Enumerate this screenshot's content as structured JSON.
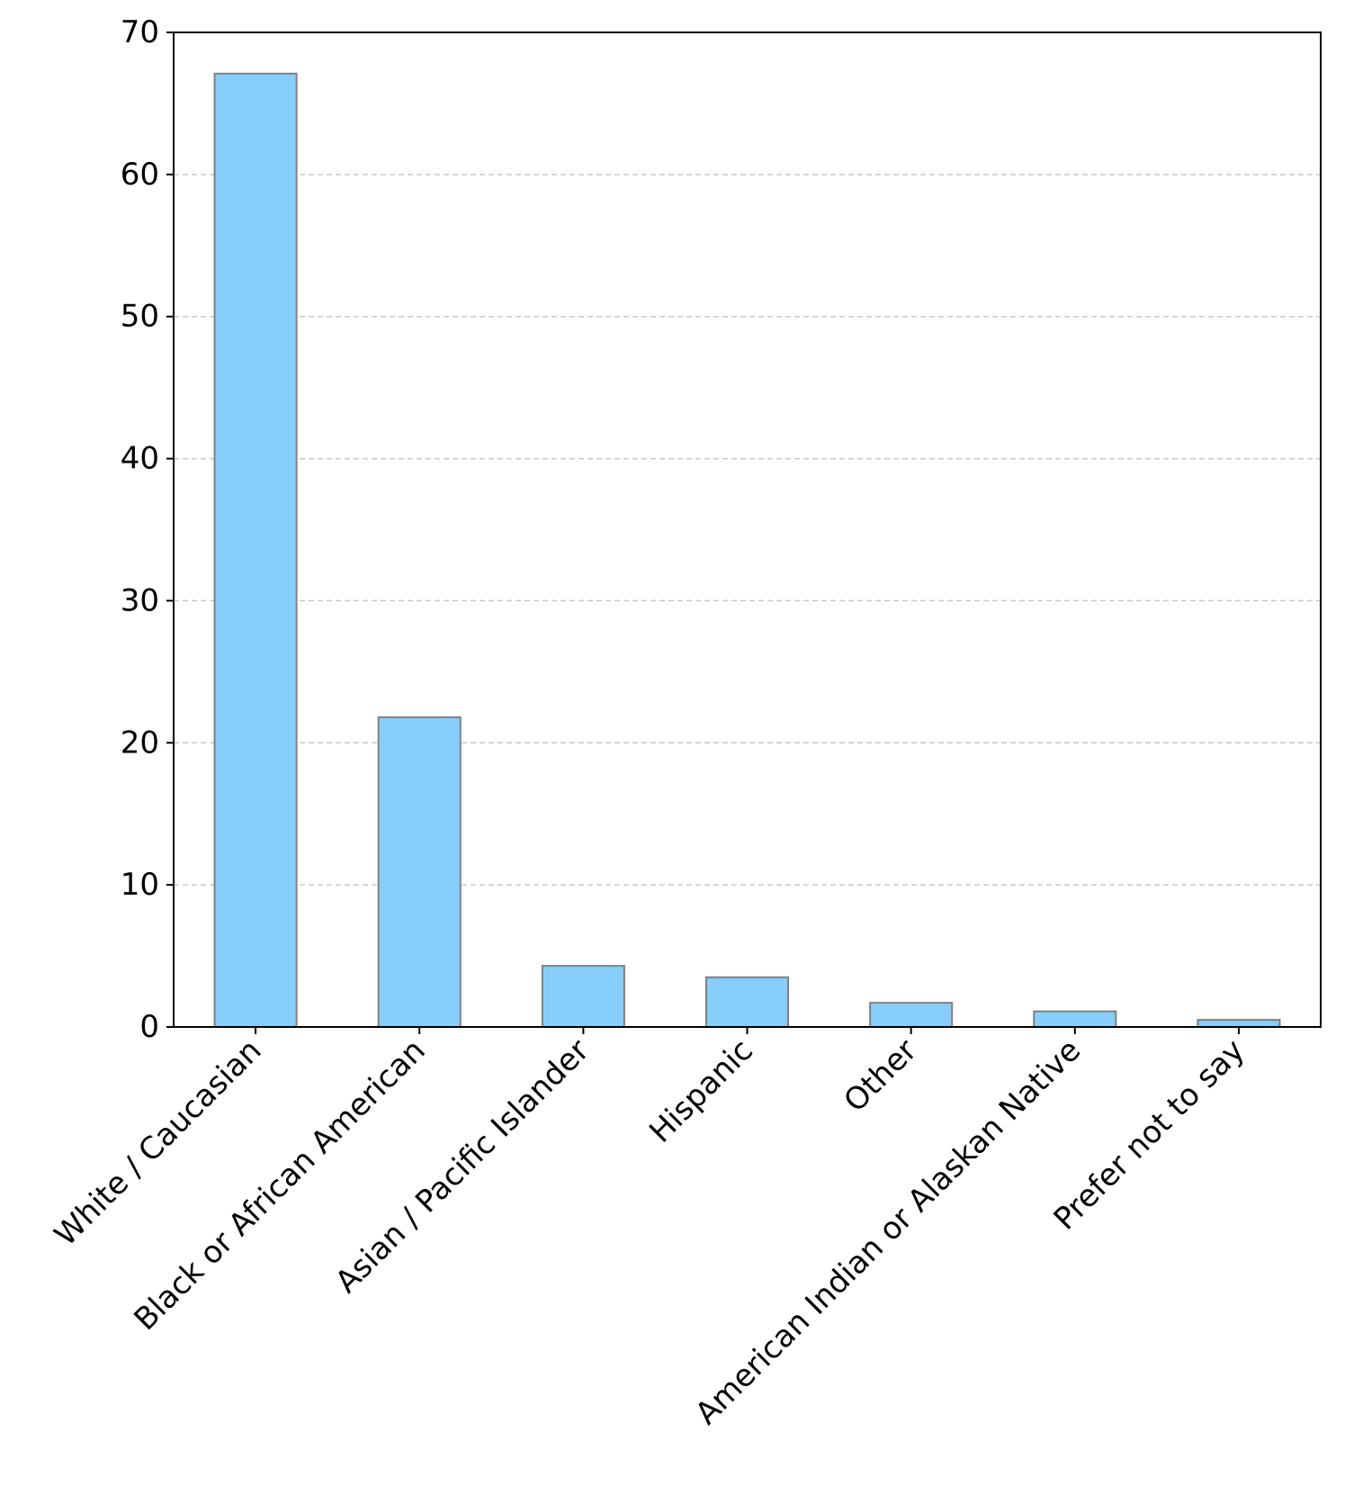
{
  "chart_data": {
    "type": "bar",
    "title": "",
    "xlabel": "",
    "ylabel": "",
    "categories": [
      "White / Caucasian",
      "Black or African American",
      "Asian / Pacific Islander",
      "Hispanic",
      "Other",
      "American Indian or Alaskan Native",
      "Prefer not to say"
    ],
    "values": [
      67.1,
      21.8,
      4.3,
      3.5,
      1.7,
      1.1,
      0.5
    ],
    "ylim": [
      0,
      70
    ],
    "yticks": [
      0,
      10,
      20,
      30,
      40,
      50,
      60,
      70
    ],
    "grid": "y-dashed",
    "colors": {
      "bar_fill": "#87CEFA",
      "bar_edge": "#808080",
      "grid": "#c8c8c8",
      "axis": "#000000"
    }
  }
}
